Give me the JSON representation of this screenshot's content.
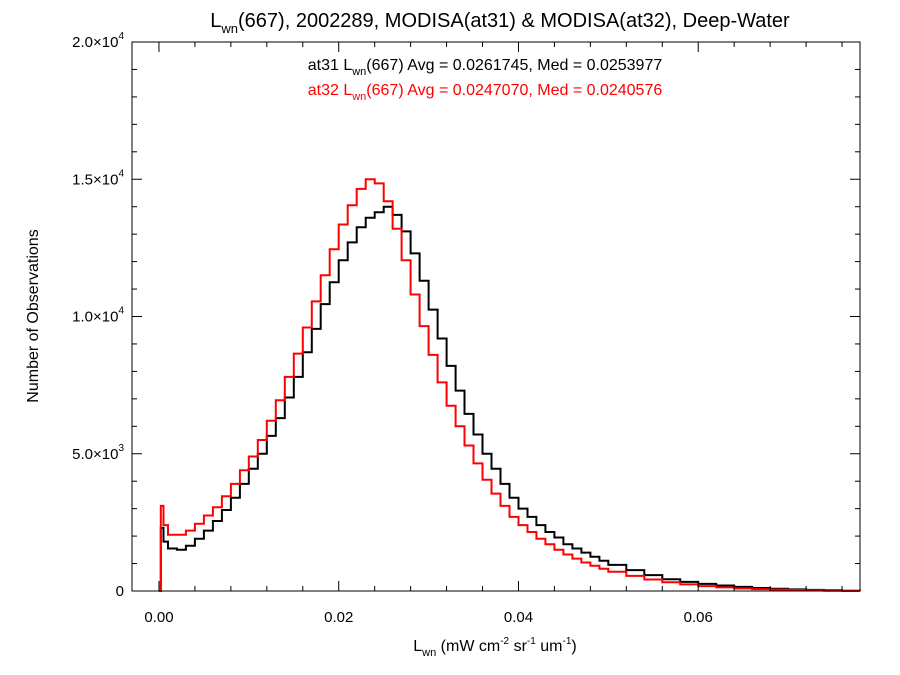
{
  "chart_data": {
    "type": "line",
    "step": true,
    "title": {
      "pre": "L",
      "sub": "wn",
      "post": "(667), 2002289, MODISA(at31) & MODISA(at32), Deep-Water"
    },
    "xlabel": {
      "pre": "L",
      "sub": "wn",
      "mid1": " (mW cm",
      "sup1": "-2",
      "mid2": " sr",
      "sup2": "-1",
      "mid3": " um",
      "sup3": "-1",
      "post": ")"
    },
    "ylabel": "Number of Observations",
    "xlim": [
      -0.003,
      0.078
    ],
    "ylim": [
      0,
      20000
    ],
    "xticks": [
      {
        "value": 0.0,
        "label": "0.00"
      },
      {
        "value": 0.02,
        "label": "0.02"
      },
      {
        "value": 0.04,
        "label": "0.04"
      },
      {
        "value": 0.06,
        "label": "0.06"
      }
    ],
    "yticks": [
      {
        "value": 0,
        "mant": "0",
        "exp": ""
      },
      {
        "value": 5000,
        "mant": "5.0×10",
        "exp": "3"
      },
      {
        "value": 10000,
        "mant": "1.0×10",
        "exp": "4"
      },
      {
        "value": 15000,
        "mant": "1.5×10",
        "exp": "4"
      },
      {
        "value": 20000,
        "mant": "2.0×10",
        "exp": "4"
      }
    ],
    "grid": false,
    "legend": "top-center text annotations",
    "annotations": [
      {
        "pre": "at31 L",
        "sub": "wn",
        "post": "(667) Avg = 0.0261745, Med = 0.0253977",
        "color": "#000000"
      },
      {
        "pre": "at32 L",
        "sub": "wn",
        "post": "(667) Avg = 0.0247070, Med = 0.0240576",
        "color": "#ff0000"
      }
    ],
    "x": [
      0.0,
      0.0002,
      0.0005,
      0.001,
      0.002,
      0.003,
      0.004,
      0.005,
      0.006,
      0.007,
      0.008,
      0.009,
      0.01,
      0.011,
      0.012,
      0.013,
      0.014,
      0.015,
      0.016,
      0.017,
      0.018,
      0.019,
      0.02,
      0.021,
      0.022,
      0.023,
      0.024,
      0.025,
      0.026,
      0.027,
      0.028,
      0.029,
      0.03,
      0.031,
      0.032,
      0.033,
      0.034,
      0.035,
      0.036,
      0.037,
      0.038,
      0.039,
      0.04,
      0.041,
      0.042,
      0.043,
      0.044,
      0.045,
      0.046,
      0.047,
      0.048,
      0.049,
      0.05,
      0.052,
      0.054,
      0.056,
      0.058,
      0.06,
      0.062,
      0.064,
      0.066,
      0.068,
      0.07,
      0.072,
      0.074,
      0.076,
      0.078
    ],
    "series": [
      {
        "name": "at31",
        "color": "#000000",
        "values": [
          0,
          2300,
          1800,
          1550,
          1500,
          1650,
          1900,
          2200,
          2550,
          2950,
          3400,
          3900,
          4450,
          5000,
          5650,
          6300,
          7050,
          7800,
          8700,
          9550,
          10450,
          11250,
          12050,
          12700,
          13250,
          13600,
          13800,
          14000,
          13700,
          13100,
          12300,
          11300,
          10250,
          9200,
          8200,
          7300,
          6450,
          5700,
          5000,
          4450,
          3900,
          3400,
          3000,
          2700,
          2400,
          2150,
          1950,
          1700,
          1550,
          1400,
          1250,
          1100,
          950,
          760,
          580,
          430,
          330,
          260,
          200,
          150,
          110,
          80,
          60,
          40,
          25,
          12,
          0
        ]
      },
      {
        "name": "at32",
        "color": "#ff0000",
        "values": [
          0,
          3100,
          2400,
          2050,
          2050,
          2200,
          2450,
          2750,
          3050,
          3450,
          3900,
          4400,
          4900,
          5500,
          6200,
          6950,
          7800,
          8650,
          9600,
          10550,
          11500,
          12450,
          13350,
          14050,
          14650,
          15000,
          14850,
          14200,
          13200,
          12050,
          10800,
          9650,
          8600,
          7600,
          6750,
          6000,
          5300,
          4650,
          4050,
          3550,
          3100,
          2700,
          2400,
          2150,
          1900,
          1700,
          1500,
          1330,
          1180,
          1040,
          920,
          810,
          700,
          550,
          420,
          320,
          240,
          180,
          130,
          95,
          70,
          50,
          35,
          22,
          12,
          5,
          0
        ]
      }
    ]
  }
}
